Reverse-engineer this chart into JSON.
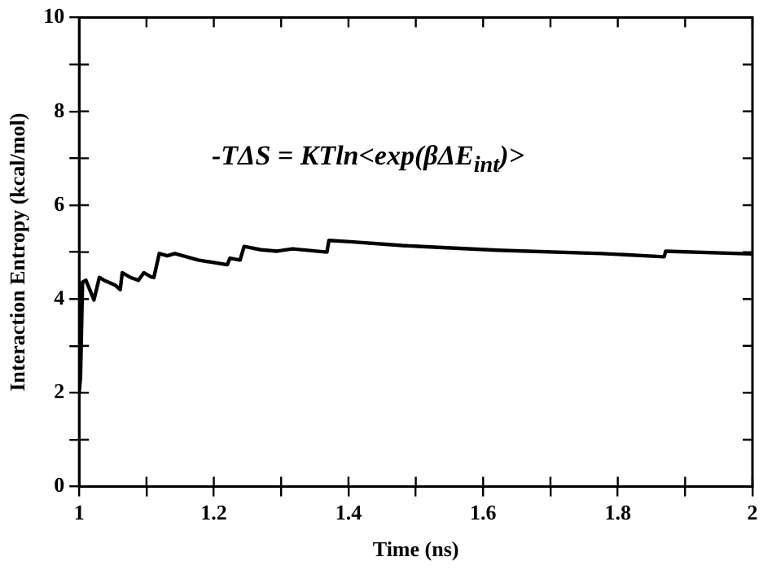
{
  "chart_data": {
    "type": "line",
    "xlabel": "Time (ns)",
    "ylabel": "Interaction Entropy (kcal/mol)",
    "annotations": [
      "-TΔS = KTln<exp(βΔE$_{int}$)>"
    ],
    "x": [
      1.0,
      1.002,
      1.005,
      1.01,
      1.022,
      1.03,
      1.037,
      1.053,
      1.061,
      1.064,
      1.076,
      1.088,
      1.096,
      1.107,
      1.111,
      1.119,
      1.131,
      1.142,
      1.177,
      1.22,
      1.224,
      1.239,
      1.245,
      1.27,
      1.294,
      1.317,
      1.368,
      1.371,
      1.403,
      1.48,
      1.62,
      1.776,
      1.869,
      1.871,
      2.0
    ],
    "series": [
      {
        "color": "#000000",
        "values": [
          2.0,
          2.33,
          4.36,
          4.4,
          3.98,
          4.46,
          4.4,
          4.3,
          4.2,
          4.56,
          4.46,
          4.4,
          4.56,
          4.47,
          4.46,
          4.97,
          4.92,
          4.97,
          4.83,
          4.73,
          4.87,
          4.83,
          5.12,
          5.05,
          5.02,
          5.07,
          5.0,
          5.25,
          5.22,
          5.14,
          5.04,
          4.97,
          4.9,
          5.02,
          4.96
        ]
      }
    ],
    "xlim": [
      1,
      2
    ],
    "xticks": [
      1,
      {
        "value": 1.1,
        "label": null
      },
      1.2,
      {
        "value": 1.3,
        "label": null
      },
      1.4,
      {
        "value": 1.5,
        "label": null
      },
      1.6,
      {
        "value": 1.7,
        "label": null
      },
      1.8,
      {
        "value": 1.9,
        "label": null
      },
      2
    ],
    "ylim": [
      0,
      10
    ],
    "yticks": [
      0,
      {
        "value": 1,
        "label": null
      },
      2,
      {
        "value": 3,
        "label": null
      },
      4,
      {
        "value": 5,
        "label": null
      },
      6,
      {
        "value": 7,
        "label": null
      },
      8,
      {
        "value": 9,
        "label": null
      },
      10
    ],
    "grid": false,
    "legend": false,
    "marker": "none",
    "line_style": "solid"
  }
}
